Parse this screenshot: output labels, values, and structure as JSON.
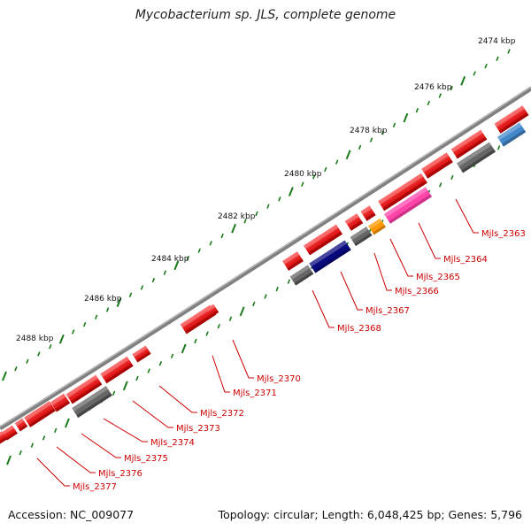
{
  "title": "Mycobacterium sp. JLS, complete genome",
  "footer": {
    "accession": "Accession: NC_009077",
    "stats": "Topology: circular; Length: 6,048,425 bp; Genes: 5,796"
  },
  "colors": {
    "backbone": "#808080",
    "gene": "#ee0000",
    "label": "#cc0000",
    "tick": "#1a7a1a",
    "cds_gray": "#666666",
    "cds_navy": "#0a0a80",
    "cds_pink": "#ff44aa",
    "cds_orange": "#ff9900",
    "cds_blue": "#4488cc"
  },
  "kbp_labels": [
    "2474 kbp",
    "2476 kbp",
    "2478 kbp",
    "2480 kbp",
    "2482 kbp",
    "2484 kbp",
    "2486 kbp",
    "2488 kbp"
  ],
  "gene_labels": [
    "Mjls_2363",
    "Mjls_2364",
    "Mjls_2365",
    "Mjls_2366",
    "Mjls_2367",
    "Mjls_2368",
    "Mjls_2370",
    "Mjls_2371",
    "Mjls_2372",
    "Mjls_2373",
    "Mjls_2374",
    "Mjls_2375",
    "Mjls_2376",
    "Mjls_2377"
  ]
}
